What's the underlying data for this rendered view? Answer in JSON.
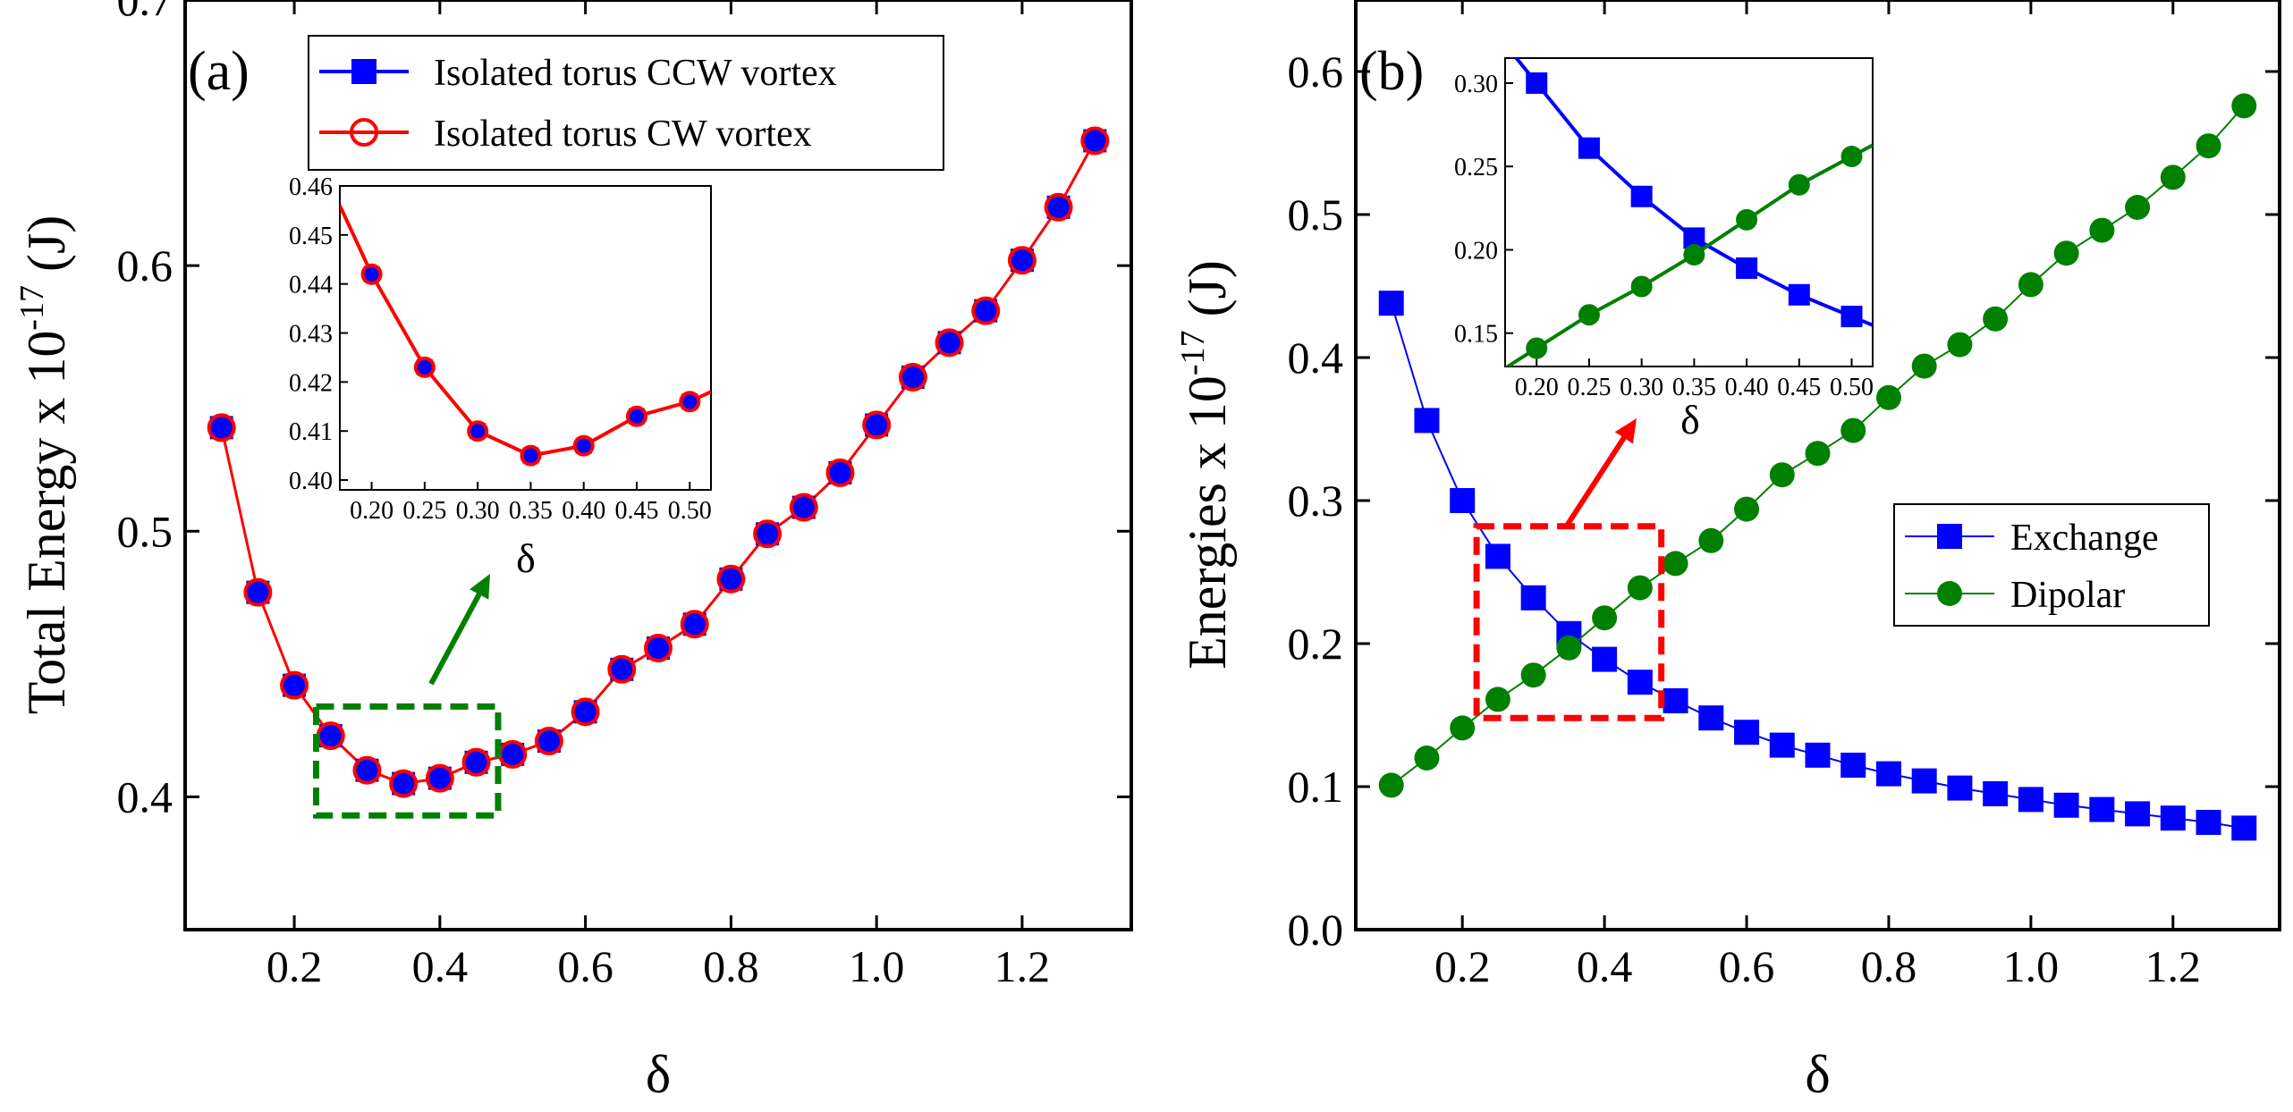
{
  "chart_data": [
    {
      "id": "a",
      "panel_label": "(a)",
      "type": "line",
      "xlabel": "δ",
      "ylabel_main": "Total Energy x 10",
      "ylabel_exp": "-17",
      "ylabel_unit": " (J)",
      "xlim": [
        0.05,
        1.35
      ],
      "ylim": [
        0.35,
        0.7
      ],
      "xticks": [
        0.2,
        0.4,
        0.6,
        0.8,
        1.0,
        1.2
      ],
      "xtick_labels": [
        "0.2",
        "0.4",
        "0.6",
        "0.8",
        "1.0",
        "1.2"
      ],
      "yticks": [
        0.4,
        0.5,
        0.6,
        0.7
      ],
      "ytick_labels": [
        "0.4",
        "0.5",
        "0.6",
        "0.7"
      ],
      "legend_position": "top-right",
      "x": [
        0.1,
        0.15,
        0.2,
        0.25,
        0.3,
        0.35,
        0.4,
        0.45,
        0.5,
        0.55,
        0.6,
        0.65,
        0.7,
        0.75,
        0.8,
        0.85,
        0.9,
        0.95,
        1.0,
        1.05,
        1.1,
        1.15,
        1.2,
        1.25,
        1.3
      ],
      "series": [
        {
          "name": "Isolated torus CCW vortex",
          "color": "#0000ff",
          "marker": "square",
          "values": [
            0.539,
            0.477,
            0.442,
            0.423,
            0.41,
            0.405,
            0.407,
            0.413,
            0.416,
            0.421,
            0.432,
            0.448,
            0.456,
            0.465,
            0.482,
            0.499,
            0.509,
            0.522,
            0.54,
            0.558,
            0.571,
            0.583,
            0.602,
            0.622,
            0.647
          ]
        },
        {
          "name": "Isolated torus CW vortex",
          "color": "#ff0000",
          "marker": "circle-open",
          "values": [
            0.539,
            0.477,
            0.442,
            0.423,
            0.41,
            0.405,
            0.407,
            0.413,
            0.416,
            0.421,
            0.432,
            0.448,
            0.456,
            0.465,
            0.482,
            0.499,
            0.509,
            0.522,
            0.54,
            0.558,
            0.571,
            0.583,
            0.602,
            0.622,
            0.647
          ]
        }
      ],
      "zoom_box": {
        "x": [
          0.23,
          0.48
        ],
        "y": [
          0.393,
          0.434
        ],
        "color": "#008000"
      },
      "inset": {
        "xlabel": "δ",
        "xlim": [
          0.17,
          0.52
        ],
        "ylim": [
          0.398,
          0.46
        ],
        "xticks": [
          0.2,
          0.25,
          0.3,
          0.35,
          0.4,
          0.45,
          0.5
        ],
        "xtick_labels": [
          "0.20",
          "0.25",
          "0.30",
          "0.35",
          "0.40",
          "0.45",
          "0.50"
        ],
        "yticks": [
          0.4,
          0.41,
          0.42,
          0.43,
          0.44,
          0.45,
          0.46
        ],
        "ytick_labels": [
          "0.40",
          "0.41",
          "0.42",
          "0.43",
          "0.44",
          "0.45",
          "0.46"
        ],
        "x": [
          0.2,
          0.25,
          0.3,
          0.35,
          0.4,
          0.45,
          0.5
        ],
        "values": [
          0.442,
          0.423,
          0.41,
          0.405,
          0.407,
          0.413,
          0.416
        ],
        "line_start": [
          0.17,
          0.456
        ],
        "line_end": [
          0.52,
          0.418
        ]
      }
    },
    {
      "id": "b",
      "panel_label": "(b)",
      "type": "line",
      "xlabel": "δ",
      "ylabel_main": "Energies x 10",
      "ylabel_exp": "-17",
      "ylabel_unit": " (J)",
      "xlim": [
        0.05,
        1.35
      ],
      "ylim": [
        0.0,
        0.65
      ],
      "xticks": [
        0.2,
        0.4,
        0.6,
        0.8,
        1.0,
        1.2
      ],
      "xtick_labels": [
        "0.2",
        "0.4",
        "0.6",
        "0.8",
        "1.0",
        "1.2"
      ],
      "yticks": [
        0.0,
        0.1,
        0.2,
        0.3,
        0.4,
        0.5,
        0.6
      ],
      "ytick_labels": [
        "0.0",
        "0.1",
        "0.2",
        "0.3",
        "0.4",
        "0.5",
        "0.6"
      ],
      "legend_position": "right",
      "x": [
        0.1,
        0.15,
        0.2,
        0.25,
        0.3,
        0.35,
        0.4,
        0.45,
        0.5,
        0.55,
        0.6,
        0.65,
        0.7,
        0.75,
        0.8,
        0.85,
        0.9,
        0.95,
        1.0,
        1.05,
        1.1,
        1.15,
        1.2,
        1.25,
        1.3
      ],
      "series": [
        {
          "name": "Exchange",
          "color": "#0000ff",
          "marker": "square",
          "values": [
            0.438,
            0.356,
            0.3,
            0.261,
            0.232,
            0.207,
            0.189,
            0.173,
            0.16,
            0.148,
            0.138,
            0.129,
            0.122,
            0.115,
            0.109,
            0.104,
            0.099,
            0.095,
            0.091,
            0.087,
            0.084,
            0.081,
            0.078,
            0.075,
            0.071
          ]
        },
        {
          "name": "Dipolar",
          "color": "#008000",
          "marker": "circle",
          "values": [
            0.101,
            0.12,
            0.141,
            0.161,
            0.178,
            0.197,
            0.218,
            0.239,
            0.256,
            0.272,
            0.294,
            0.318,
            0.333,
            0.349,
            0.372,
            0.394,
            0.409,
            0.427,
            0.451,
            0.473,
            0.489,
            0.505,
            0.526,
            0.548,
            0.576
          ]
        }
      ],
      "zoom_box": {
        "x": [
          0.22,
          0.48
        ],
        "y": [
          0.148,
          0.282
        ],
        "color": "#ff0000"
      },
      "inset": {
        "xlabel": "δ",
        "xlim": [
          0.17,
          0.52
        ],
        "ylim": [
          0.13,
          0.315
        ],
        "xticks": [
          0.2,
          0.25,
          0.3,
          0.35,
          0.4,
          0.45,
          0.5
        ],
        "xtick_labels": [
          "0.20",
          "0.25",
          "0.30",
          "0.35",
          "0.40",
          "0.45",
          "0.50"
        ],
        "yticks": [
          0.15,
          0.2,
          0.25,
          0.3
        ],
        "ytick_labels": [
          "0.15",
          "0.20",
          "0.25",
          "0.30"
        ],
        "x": [
          0.2,
          0.25,
          0.3,
          0.35,
          0.4,
          0.45,
          0.5
        ],
        "series": [
          {
            "name": "Exchange",
            "values": [
              0.3,
              0.261,
              0.232,
              0.207,
              0.189,
              0.173,
              0.16
            ]
          },
          {
            "name": "Dipolar",
            "values": [
              0.141,
              0.161,
              0.178,
              0.197,
              0.218,
              0.239,
              0.256
            ]
          }
        ]
      }
    }
  ]
}
